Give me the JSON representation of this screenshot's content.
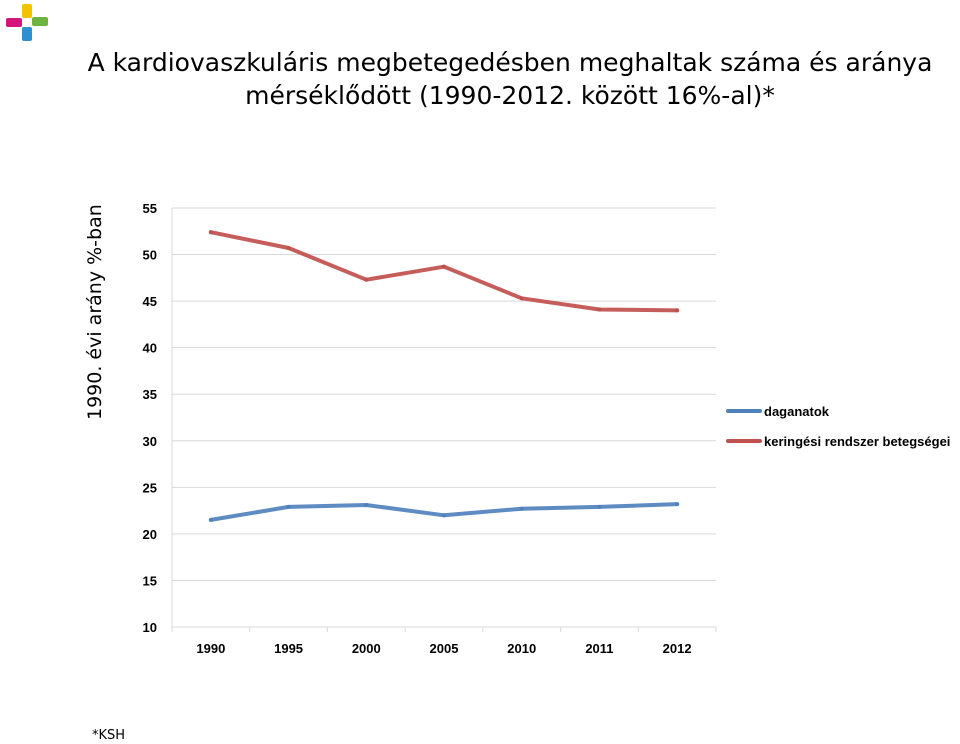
{
  "title_lines": [
    "A kardiovaszkuláris megbetegedésben meghaltak száma és aránya",
    "mérséklődött (1990-2012. között 16%-al)*"
  ],
  "footnote": "*KSH",
  "logo_icon": "colored-hands-logo-icon",
  "colors": {
    "daganatok": "#4F81BD",
    "keringesi": "#C0504D",
    "grid": "#D9D9D9",
    "axis_text": "#000000"
  },
  "chart_data": {
    "type": "line",
    "title": "",
    "xlabel": "",
    "ylabel": "1990. évi arány %-ban",
    "categories": [
      "1990",
      "1995",
      "2000",
      "2005",
      "2010",
      "2011",
      "2012"
    ],
    "y_ticks": [
      "10",
      "15",
      "20",
      "25",
      "30",
      "35",
      "40",
      "45",
      "50",
      "55"
    ],
    "ylim": [
      10,
      55
    ],
    "grid": true,
    "legend_position": "right",
    "series": [
      {
        "name": "daganatok",
        "color": "#4F81BD",
        "values": [
          21.5,
          22.9,
          23.1,
          22.0,
          22.7,
          22.9,
          23.2
        ]
      },
      {
        "name": "keringési rendszer betegségei",
        "color": "#C0504D",
        "values": [
          52.4,
          50.7,
          47.3,
          48.7,
          45.3,
          44.1,
          44.0
        ]
      }
    ]
  }
}
